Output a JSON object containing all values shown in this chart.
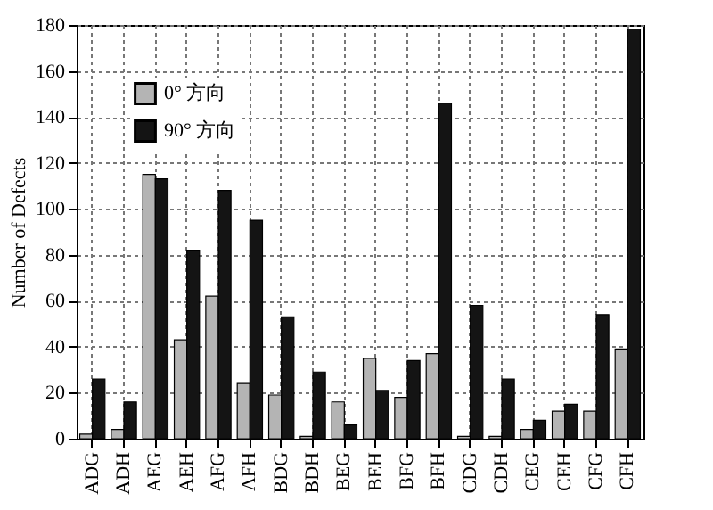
{
  "chart_data": {
    "type": "bar",
    "ylabel": "Number of Defects",
    "categories": [
      "ADG",
      "ADH",
      "AEG",
      "AEH",
      "AFG",
      "AFH",
      "BDG",
      "BDH",
      "BEG",
      "BEH",
      "BFG",
      "BFH",
      "CDG",
      "CDH",
      "CEG",
      "CEH",
      "CFG",
      "CFH"
    ],
    "series": [
      {
        "name": "0° 方向",
        "color": "#b4b4b4",
        "values": [
          2,
          4,
          115,
          43,
          62,
          24,
          19,
          1,
          16,
          35,
          18,
          37,
          1,
          1,
          4,
          12,
          12,
          39
        ]
      },
      {
        "name": "90° 方向",
        "color": "#141414",
        "values": [
          26,
          16,
          113,
          82,
          108,
          95,
          53,
          29,
          6,
          21,
          34,
          146,
          58,
          26,
          8,
          15,
          54,
          178
        ]
      }
    ],
    "ylim": [
      0,
      180
    ],
    "yticks": [
      0,
      20,
      40,
      60,
      80,
      100,
      120,
      140,
      160,
      180
    ],
    "grid": true,
    "legend": "top left"
  }
}
